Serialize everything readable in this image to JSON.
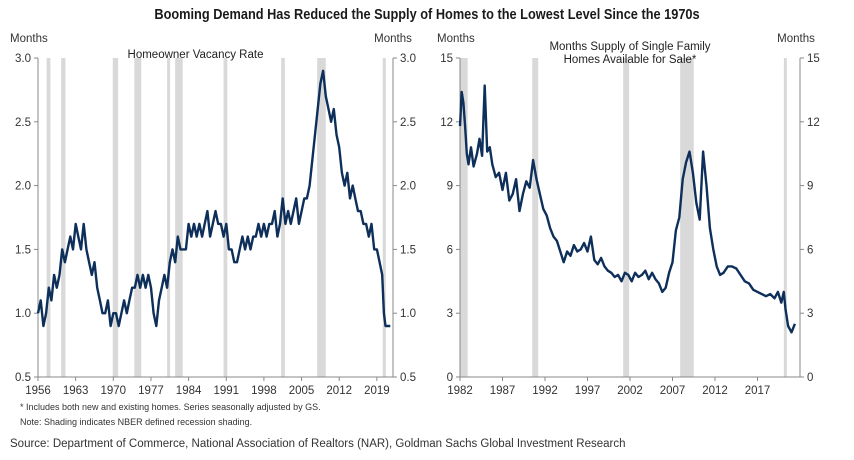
{
  "title": "Booming Demand Has Reduced the Supply of Homes to the Lowest Level Since the 1970s",
  "notes": [
    "* Includes both new and existing homes. Series seasonally adjusted by GS.",
    "Note: Shading indicates NBER defined recession shading."
  ],
  "source": "Source: Department of Commerce, National Association of Realtors (NAR), Goldman Sachs Global Investment Research",
  "colors": {
    "line": "#0d2f5a",
    "recession": "#d9d9d9",
    "axis": "#888888"
  },
  "chart_data": [
    {
      "type": "line",
      "title": "Homeowner  Vacancy Rate",
      "ylabel_left": "Months",
      "ylabel_right": "Months",
      "xlim": [
        1956,
        2022
      ],
      "ylim": [
        0.5,
        3.0
      ],
      "y_ticks": [
        "0.5",
        "1.0",
        "1.5",
        "2.0",
        "2.5",
        "3.0"
      ],
      "x_ticks": [
        "1956",
        "1963",
        "1970",
        "1977",
        "1984",
        "1991",
        "1998",
        "2005",
        "2012",
        "2019"
      ],
      "grid": false,
      "recessions": [
        [
          1957.6,
          1958.3
        ],
        [
          1960.3,
          1961.1
        ],
        [
          1969.9,
          1970.9
        ],
        [
          1973.9,
          1975.2
        ],
        [
          1980.0,
          1980.5
        ],
        [
          1981.5,
          1982.9
        ],
        [
          1990.5,
          1991.2
        ],
        [
          2001.2,
          2001.9
        ],
        [
          2007.9,
          2009.5
        ],
        [
          2020.1,
          2020.4
        ]
      ],
      "series": [
        {
          "x": [
            1956.0,
            1956.5,
            1957.0,
            1957.5,
            1958.0,
            1958.5,
            1959.0,
            1959.5,
            1960.0,
            1960.5,
            1961.0,
            1961.5,
            1962.0,
            1962.5,
            1963.0,
            1963.5,
            1964.0,
            1964.5,
            1965.0,
            1965.5,
            1966.0,
            1966.5,
            1967.0,
            1967.5,
            1968.0,
            1968.5,
            1969.0,
            1969.5,
            1970.0,
            1970.5,
            1971.0,
            1971.5,
            1972.0,
            1972.5,
            1973.0,
            1973.5,
            1974.0,
            1974.5,
            1975.0,
            1975.5,
            1976.0,
            1976.5,
            1977.0,
            1977.5,
            1978.0,
            1978.5,
            1979.0,
            1979.5,
            1980.0,
            1980.5,
            1981.0,
            1981.5,
            1982.0,
            1982.5,
            1983.0,
            1983.5,
            1984.0,
            1984.5,
            1985.0,
            1985.5,
            1986.0,
            1986.5,
            1987.0,
            1987.5,
            1988.0,
            1988.5,
            1989.0,
            1989.5,
            1990.0,
            1990.5,
            1991.0,
            1991.5,
            1992.0,
            1992.5,
            1993.0,
            1993.5,
            1994.0,
            1994.5,
            1995.0,
            1995.5,
            1996.0,
            1996.5,
            1997.0,
            1997.5,
            1998.0,
            1998.5,
            1999.0,
            1999.5,
            2000.0,
            2000.5,
            2001.0,
            2001.5,
            2002.0,
            2002.5,
            2003.0,
            2003.5,
            2004.0,
            2004.5,
            2005.0,
            2005.5,
            2006.0,
            2006.5,
            2007.0,
            2007.5,
            2008.0,
            2008.5,
            2009.0,
            2009.5,
            2010.0,
            2010.5,
            2011.0,
            2011.5,
            2012.0,
            2012.5,
            2013.0,
            2013.5,
            2014.0,
            2014.5,
            2015.0,
            2015.5,
            2016.0,
            2016.5,
            2017.0,
            2017.5,
            2018.0,
            2018.5,
            2019.0,
            2019.5,
            2020.0,
            2020.3,
            2020.6,
            2021.0,
            2021.5
          ],
          "y": [
            1.0,
            1.1,
            0.9,
            1.0,
            1.2,
            1.1,
            1.3,
            1.2,
            1.3,
            1.5,
            1.4,
            1.5,
            1.6,
            1.5,
            1.7,
            1.6,
            1.5,
            1.7,
            1.5,
            1.4,
            1.3,
            1.4,
            1.2,
            1.1,
            1.0,
            1.0,
            1.1,
            0.9,
            1.0,
            1.0,
            0.9,
            1.0,
            1.1,
            1.0,
            1.1,
            1.2,
            1.2,
            1.3,
            1.2,
            1.3,
            1.2,
            1.3,
            1.2,
            1.0,
            0.9,
            1.1,
            1.2,
            1.3,
            1.2,
            1.4,
            1.5,
            1.4,
            1.6,
            1.5,
            1.5,
            1.5,
            1.7,
            1.6,
            1.7,
            1.6,
            1.7,
            1.6,
            1.7,
            1.8,
            1.6,
            1.7,
            1.8,
            1.7,
            1.7,
            1.6,
            1.7,
            1.5,
            1.5,
            1.4,
            1.4,
            1.5,
            1.6,
            1.5,
            1.6,
            1.5,
            1.6,
            1.6,
            1.7,
            1.6,
            1.7,
            1.6,
            1.7,
            1.7,
            1.8,
            1.6,
            1.7,
            1.9,
            1.7,
            1.8,
            1.7,
            1.8,
            1.9,
            1.7,
            1.8,
            1.9,
            1.9,
            2.0,
            2.2,
            2.4,
            2.6,
            2.8,
            2.9,
            2.7,
            2.6,
            2.5,
            2.6,
            2.4,
            2.3,
            2.1,
            2.0,
            2.1,
            1.9,
            2.0,
            1.9,
            1.8,
            1.8,
            1.7,
            1.7,
            1.6,
            1.7,
            1.5,
            1.5,
            1.4,
            1.3,
            1.0,
            0.9,
            0.9,
            0.9
          ]
        }
      ]
    },
    {
      "type": "line",
      "title": "Months Supply of Single Family\nHomes Available  for Sale*",
      "ylabel_left": "Months",
      "ylabel_right": "Months",
      "xlim": [
        1982,
        2022
      ],
      "ylim": [
        0,
        15
      ],
      "y_ticks": [
        "0",
        "3",
        "6",
        "9",
        "12",
        "15"
      ],
      "x_ticks": [
        "1982",
        "1987",
        "1992",
        "1997",
        "2002",
        "2007",
        "2012",
        "2017"
      ],
      "grid": false,
      "recessions": [
        [
          1982.0,
          1982.9
        ],
        [
          1990.5,
          1991.2
        ],
        [
          2001.2,
          2001.9
        ],
        [
          2007.9,
          2009.5
        ],
        [
          2020.1,
          2020.4
        ]
      ],
      "series": [
        {
          "x": [
            1982.0,
            1982.2,
            1982.4,
            1982.6,
            1982.8,
            1983.0,
            1983.3,
            1983.6,
            1984.0,
            1984.3,
            1984.6,
            1984.9,
            1985.2,
            1985.5,
            1985.8,
            1986.2,
            1986.6,
            1987.0,
            1987.4,
            1987.8,
            1988.2,
            1988.6,
            1989.0,
            1989.4,
            1989.8,
            1990.2,
            1990.6,
            1991.0,
            1991.4,
            1991.8,
            1992.2,
            1992.6,
            1993.0,
            1993.4,
            1993.8,
            1994.2,
            1994.6,
            1995.0,
            1995.4,
            1995.8,
            1996.2,
            1996.6,
            1997.0,
            1997.4,
            1997.8,
            1998.2,
            1998.6,
            1999.0,
            1999.4,
            1999.8,
            2000.2,
            2000.6,
            2001.0,
            2001.4,
            2001.8,
            2002.2,
            2002.6,
            2003.0,
            2003.4,
            2003.8,
            2004.2,
            2004.6,
            2005.0,
            2005.4,
            2005.8,
            2006.2,
            2006.6,
            2007.0,
            2007.4,
            2007.8,
            2008.2,
            2008.6,
            2009.0,
            2009.4,
            2009.8,
            2010.2,
            2010.6,
            2011.0,
            2011.4,
            2011.8,
            2012.2,
            2012.6,
            2013.0,
            2013.5,
            2014.0,
            2014.5,
            2015.0,
            2015.5,
            2016.0,
            2016.5,
            2017.0,
            2017.5,
            2018.0,
            2018.5,
            2019.0,
            2019.4,
            2019.8,
            2020.1,
            2020.3,
            2020.6,
            2021.0,
            2021.4
          ],
          "y": [
            11.8,
            13.4,
            12.9,
            11.8,
            10.5,
            10.0,
            10.8,
            9.9,
            10.5,
            11.2,
            10.4,
            13.7,
            10.6,
            10.8,
            10.0,
            9.4,
            9.6,
            8.8,
            9.6,
            8.3,
            8.6,
            9.3,
            7.8,
            8.6,
            9.2,
            8.9,
            10.2,
            9.3,
            8.6,
            7.9,
            7.6,
            7.0,
            6.6,
            6.4,
            5.9,
            5.4,
            5.9,
            5.7,
            6.2,
            5.9,
            6.0,
            6.3,
            5.9,
            6.6,
            5.5,
            5.3,
            5.6,
            5.2,
            5.0,
            4.9,
            4.7,
            4.8,
            4.5,
            4.9,
            4.8,
            4.5,
            4.9,
            4.7,
            4.8,
            5.0,
            4.6,
            4.9,
            4.6,
            4.4,
            4.0,
            4.2,
            4.9,
            5.4,
            6.9,
            7.5,
            9.3,
            10.1,
            10.6,
            9.6,
            8.2,
            7.4,
            10.6,
            9.0,
            7.0,
            6.0,
            5.2,
            4.8,
            4.9,
            5.2,
            5.2,
            5.1,
            4.8,
            4.5,
            4.4,
            4.1,
            4.0,
            3.9,
            3.8,
            3.9,
            3.7,
            4.0,
            3.5,
            4.0,
            3.2,
            2.4,
            2.1,
            2.5
          ]
        }
      ]
    }
  ]
}
